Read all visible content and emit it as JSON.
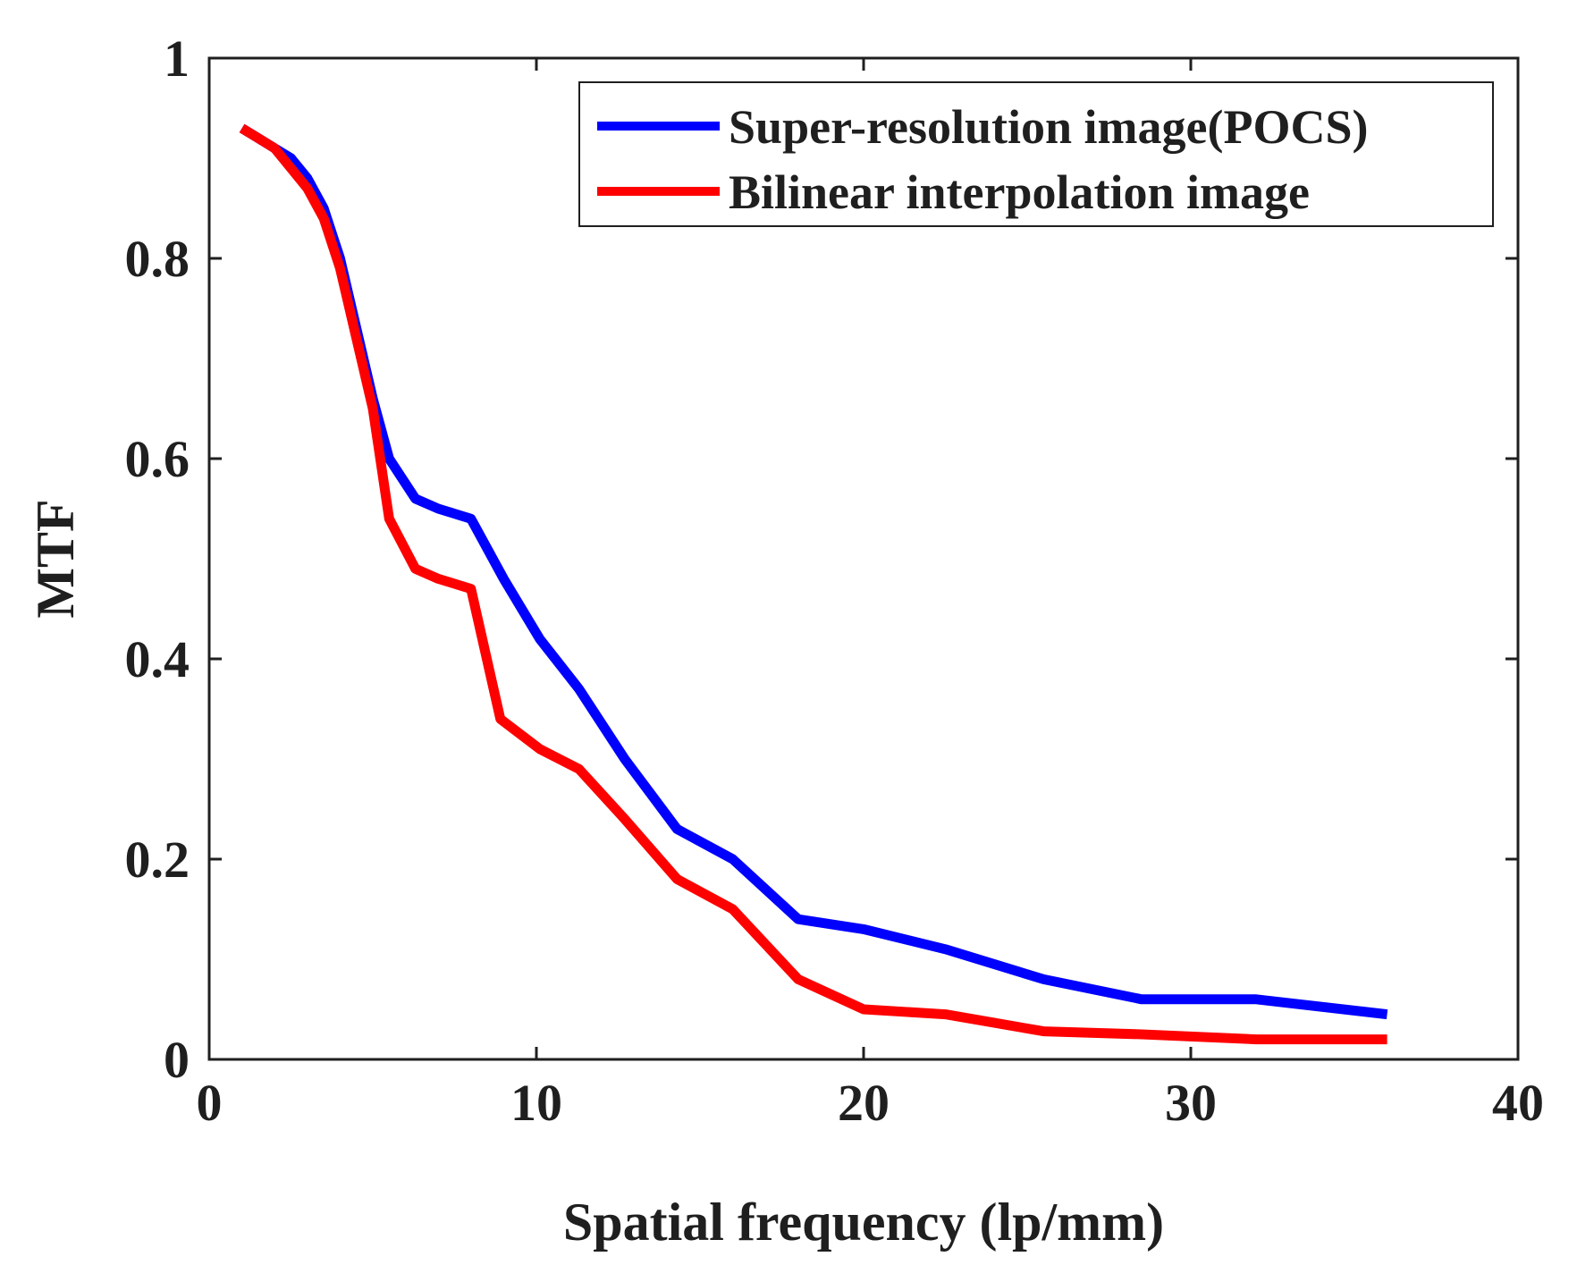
{
  "chart_data": {
    "type": "line",
    "title": "",
    "xlabel": "Spatial frequency (lp/mm)",
    "ylabel": "MTF",
    "xlim": [
      0,
      40
    ],
    "ylim": [
      0,
      1
    ],
    "xticks": [
      0,
      10,
      20,
      30,
      40
    ],
    "yticks": [
      0,
      0.2,
      0.4,
      0.6,
      0.8,
      1
    ],
    "xtick_labels": [
      "0",
      "10",
      "20",
      "30",
      "40"
    ],
    "ytick_labels": [
      "0",
      "0.2",
      "0.4",
      "0.6",
      "0.8",
      "1"
    ],
    "grid": false,
    "legend_position": "top-right",
    "series": [
      {
        "name": "Super-resolution image(POCS)",
        "color": "#0000ff",
        "x": [
          1.0,
          1.5,
          2.0,
          2.5,
          3.0,
          3.5,
          4.0,
          4.5,
          5.0,
          5.5,
          6.3,
          7.0,
          8.0,
          9.0,
          10.1,
          11.3,
          12.7,
          14.3,
          16.0,
          18.0,
          20.0,
          22.5,
          25.5,
          28.5,
          32.0,
          36.0
        ],
        "values": [
          0.93,
          0.92,
          0.91,
          0.9,
          0.88,
          0.85,
          0.8,
          0.73,
          0.66,
          0.6,
          0.56,
          0.55,
          0.54,
          0.48,
          0.42,
          0.37,
          0.3,
          0.23,
          0.2,
          0.14,
          0.13,
          0.11,
          0.08,
          0.06,
          0.06,
          0.045
        ]
      },
      {
        "name": "Bilinear interpolation image",
        "color": "#ff0000",
        "x": [
          1.0,
          1.5,
          2.0,
          2.5,
          3.0,
          3.5,
          4.0,
          4.5,
          5.0,
          5.5,
          6.3,
          7.0,
          8.0,
          8.9,
          10.1,
          11.3,
          12.7,
          14.3,
          16.0,
          18.0,
          20.0,
          22.5,
          25.5,
          28.5,
          32.0,
          36.0
        ],
        "values": [
          0.93,
          0.92,
          0.91,
          0.89,
          0.87,
          0.84,
          0.79,
          0.72,
          0.65,
          0.54,
          0.49,
          0.48,
          0.47,
          0.34,
          0.31,
          0.29,
          0.24,
          0.18,
          0.15,
          0.08,
          0.05,
          0.045,
          0.028,
          0.025,
          0.02,
          0.02
        ]
      }
    ]
  }
}
